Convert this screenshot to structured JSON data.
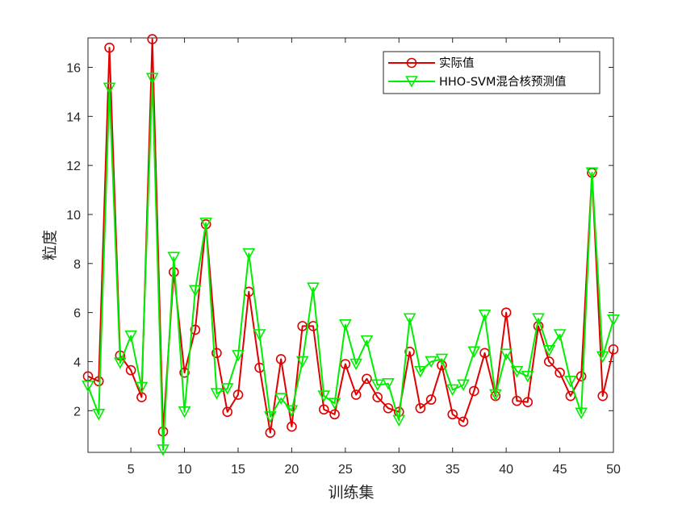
{
  "chart_data": {
    "type": "line",
    "xlabel": "训练集",
    "ylabel": "粒度",
    "xlim": [
      1,
      50
    ],
    "ylim": [
      0.3,
      17.2
    ],
    "xticks": [
      5,
      10,
      15,
      20,
      25,
      30,
      35,
      40,
      45,
      50
    ],
    "yticks": [
      2,
      4,
      6,
      8,
      10,
      12,
      14,
      16
    ],
    "grid": false,
    "legend_position": "top-right",
    "x": [
      1,
      2,
      3,
      4,
      5,
      6,
      7,
      8,
      9,
      10,
      11,
      12,
      13,
      14,
      15,
      16,
      17,
      18,
      19,
      20,
      21,
      22,
      23,
      24,
      25,
      26,
      27,
      28,
      29,
      30,
      31,
      32,
      33,
      34,
      35,
      36,
      37,
      38,
      39,
      40,
      41,
      42,
      43,
      44,
      45,
      46,
      47,
      48,
      49,
      50
    ],
    "series": [
      {
        "name": "实际值",
        "color": "#e00000",
        "marker": "circle",
        "values": [
          3.4,
          3.2,
          16.8,
          4.25,
          3.65,
          2.55,
          17.15,
          1.15,
          7.65,
          3.55,
          5.3,
          9.6,
          4.35,
          1.95,
          2.65,
          6.85,
          3.75,
          1.1,
          4.1,
          1.35,
          5.45,
          5.45,
          2.05,
          1.85,
          3.9,
          2.65,
          3.3,
          2.55,
          2.1,
          1.95,
          4.4,
          2.1,
          2.45,
          3.85,
          1.85,
          1.55,
          2.8,
          4.35,
          2.6,
          6.0,
          2.4,
          2.35,
          5.45,
          4.0,
          3.55,
          2.6,
          3.4,
          11.7,
          2.6,
          4.5
        ]
      },
      {
        "name": "HHO-SVM混合核预测值",
        "color": "#00ee00",
        "marker": "triangle-down",
        "values": [
          3.0,
          1.85,
          15.15,
          3.95,
          5.05,
          2.95,
          15.55,
          0.4,
          8.25,
          1.95,
          6.9,
          9.65,
          2.7,
          2.9,
          4.25,
          8.4,
          5.1,
          1.75,
          2.5,
          2.0,
          4.0,
          7.0,
          2.6,
          2.3,
          5.5,
          3.9,
          4.85,
          3.05,
          3.1,
          1.6,
          5.75,
          3.6,
          4.0,
          4.1,
          2.85,
          3.05,
          4.4,
          5.9,
          2.65,
          4.3,
          3.6,
          3.4,
          5.75,
          4.45,
          5.1,
          3.2,
          1.9,
          11.7,
          4.2,
          5.7
        ]
      }
    ]
  }
}
